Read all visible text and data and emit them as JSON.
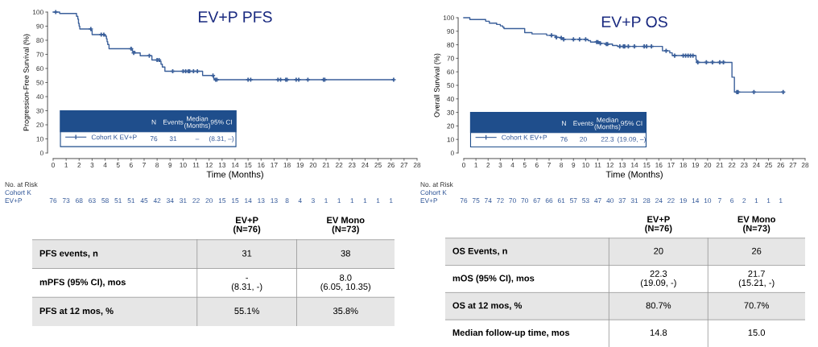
{
  "chart_data": [
    {
      "type": "step",
      "title": "EV+P PFS",
      "xlabel": "Time (Months)",
      "ylabel": "Progression-Free Survival (%)",
      "xlim": [
        0,
        28
      ],
      "ylim": [
        0,
        100
      ],
      "xticks": [
        0,
        1,
        2,
        3,
        4,
        5,
        6,
        7,
        8,
        9,
        10,
        11,
        12,
        13,
        14,
        15,
        16,
        17,
        18,
        19,
        20,
        21,
        22,
        23,
        24,
        25,
        26,
        27,
        28
      ],
      "yticks": [
        0,
        10,
        20,
        30,
        40,
        50,
        60,
        70,
        80,
        90,
        100
      ],
      "grid": false,
      "legend": "bottom left",
      "series": [
        {
          "name": "Cohort K EV+P",
          "color": "#3a5f9a",
          "type": "step",
          "x": [
            0,
            0.5,
            1.8,
            1.9,
            1.95,
            2.0,
            2.05,
            2.9,
            3.0,
            4.0,
            4.1,
            4.15,
            4.2,
            4.3,
            6.1,
            6.3,
            6.7,
            7.6,
            8.2,
            8.3,
            8.4,
            8.6,
            11.5,
            12.35,
            12.4,
            26.2
          ],
          "values": [
            100,
            99,
            97,
            95,
            92,
            90,
            88,
            87,
            84,
            83,
            81,
            79,
            77,
            74,
            72,
            71,
            69,
            66,
            65,
            63,
            61,
            58,
            55,
            53,
            52,
            52
          ]
        },
        {
          "color": "#3a5f9a",
          "type": "scatter",
          "marker": "cross",
          "x": [
            0.2,
            2.9,
            3.7,
            3.9,
            6.0,
            6.2,
            7.4,
            8.0,
            8.15,
            9.2,
            10.0,
            10.2,
            10.4,
            10.5,
            10.8,
            11.1,
            12.3,
            12.5,
            12.6,
            15.0,
            15.2,
            17.3,
            17.5,
            17.9,
            18.0,
            18.7,
            18.9,
            19.6,
            20.8,
            20.9,
            26.2
          ],
          "values": [
            100,
            88,
            84,
            84,
            74,
            71,
            69,
            66,
            66,
            58,
            58,
            58,
            58,
            58,
            58,
            58,
            55,
            52,
            52,
            52,
            52,
            52,
            52,
            52,
            52,
            52,
            52,
            52,
            52,
            52,
            52
          ]
        }
      ],
      "annotations": [
        "N",
        "Events",
        "Median\n(Months)",
        "95% CI",
        "76",
        "31",
        "–",
        "(8.31, –)",
        "No. at Risk",
        "Cohort K",
        "EV+P",
        "76",
        "73",
        "68",
        "63",
        "58",
        "51",
        "51",
        "45",
        "42",
        "34",
        "31",
        "22",
        "20",
        "15",
        "15",
        "14",
        "13",
        "13",
        "8",
        "4",
        "3",
        "1",
        "1",
        "1",
        "1",
        "1",
        "1"
      ]
    },
    {
      "type": "step",
      "title": "EV+P OS",
      "xlabel": "Time (Months)",
      "ylabel": "Overall Survival (%)",
      "xlim": [
        0,
        28
      ],
      "ylim": [
        0,
        100
      ],
      "xticks": [
        0,
        1,
        2,
        3,
        4,
        5,
        6,
        7,
        8,
        9,
        10,
        11,
        12,
        13,
        14,
        15,
        16,
        17,
        18,
        19,
        20,
        21,
        22,
        23,
        24,
        25,
        26,
        27,
        28
      ],
      "yticks": [
        0,
        10,
        20,
        30,
        40,
        50,
        60,
        70,
        80,
        90,
        100
      ],
      "grid": false,
      "legend": "bottom left",
      "series": [
        {
          "name": "Cohort K EV+P",
          "color": "#3a5f9a",
          "type": "step",
          "x": [
            0,
            0.5,
            1.8,
            2.1,
            2.7,
            3.0,
            3.2,
            3.3,
            5.0,
            5.6,
            6.8,
            7.5,
            8.0,
            8.2,
            10.2,
            10.4,
            11.2,
            11.6,
            12.2,
            12.6,
            16.3,
            16.9,
            17.1,
            19.05,
            19.1,
            22.0,
            22.2,
            26.2
          ],
          "values": [
            100,
            98.7,
            97.4,
            96,
            95,
            94,
            93,
            92,
            89,
            88,
            87,
            85.5,
            85,
            84,
            83,
            82,
            81,
            80.5,
            79.5,
            78.8,
            75.5,
            74,
            72,
            69,
            67,
            56,
            45,
            45
          ]
        },
        {
          "color": "#3a5f9a",
          "type": "scatter",
          "marker": "cross",
          "x": [
            7.2,
            7.6,
            8.0,
            8.2,
            9.0,
            9.5,
            10.0,
            10.9,
            11.0,
            11.2,
            11.7,
            11.8,
            12.8,
            13.1,
            13.2,
            13.5,
            14.0,
            14.8,
            15.0,
            15.4,
            16.6,
            17.3,
            18.0,
            18.2,
            18.4,
            18.6,
            18.8,
            19.2,
            19.9,
            20.4,
            21.0,
            21.3,
            22.4,
            22.5,
            23.8,
            26.2
          ],
          "values": [
            87,
            85.5,
            85,
            84,
            84,
            84,
            84,
            82,
            82,
            81,
            80.5,
            80.5,
            78.8,
            78.8,
            78.8,
            78.8,
            78.8,
            78.8,
            78.8,
            78.8,
            75.5,
            72,
            72,
            72,
            72,
            72,
            72,
            67,
            67,
            67,
            67,
            67,
            45,
            45,
            45,
            45
          ]
        }
      ],
      "annotations": [
        "N",
        "Events",
        "Median\n(Months)",
        "95% CI",
        "76",
        "20",
        "22.3",
        "(19.09, –)",
        "No. at Risk",
        "Cohort K",
        "EV+P",
        "76",
        "75",
        "74",
        "72",
        "70",
        "70",
        "67",
        "66",
        "61",
        "57",
        "53",
        "47",
        "40",
        "37",
        "31",
        "28",
        "24",
        "22",
        "19",
        "14",
        "10",
        "7",
        "6",
        "2",
        "1",
        "1",
        "1"
      ]
    },
    {
      "type": "other",
      "annotations": [
        "EV+P\n(N=76)",
        "EV Mono\n(N=73)",
        "PFS events, n",
        "31",
        "38",
        "mPFS (95% CI), mos",
        "-\n(8.31, -)",
        "8.0\n(6.05, 10.35)",
        "PFS at 12 mos, %",
        "55.1%",
        "35.8%"
      ]
    },
    {
      "type": "other",
      "annotations": [
        "EV+P\n(N=76)",
        "EV Mono\n(N=73)",
        "OS Events, n",
        "20",
        "26",
        "mOS (95% CI), mos",
        "22.3\n(19.09, -)",
        "21.7\n(15.21, -)",
        "OS at 12 mos, %",
        "80.7%",
        "70.7%",
        "Median follow-up time, mos",
        "14.8",
        "15.0"
      ]
    }
  ]
}
